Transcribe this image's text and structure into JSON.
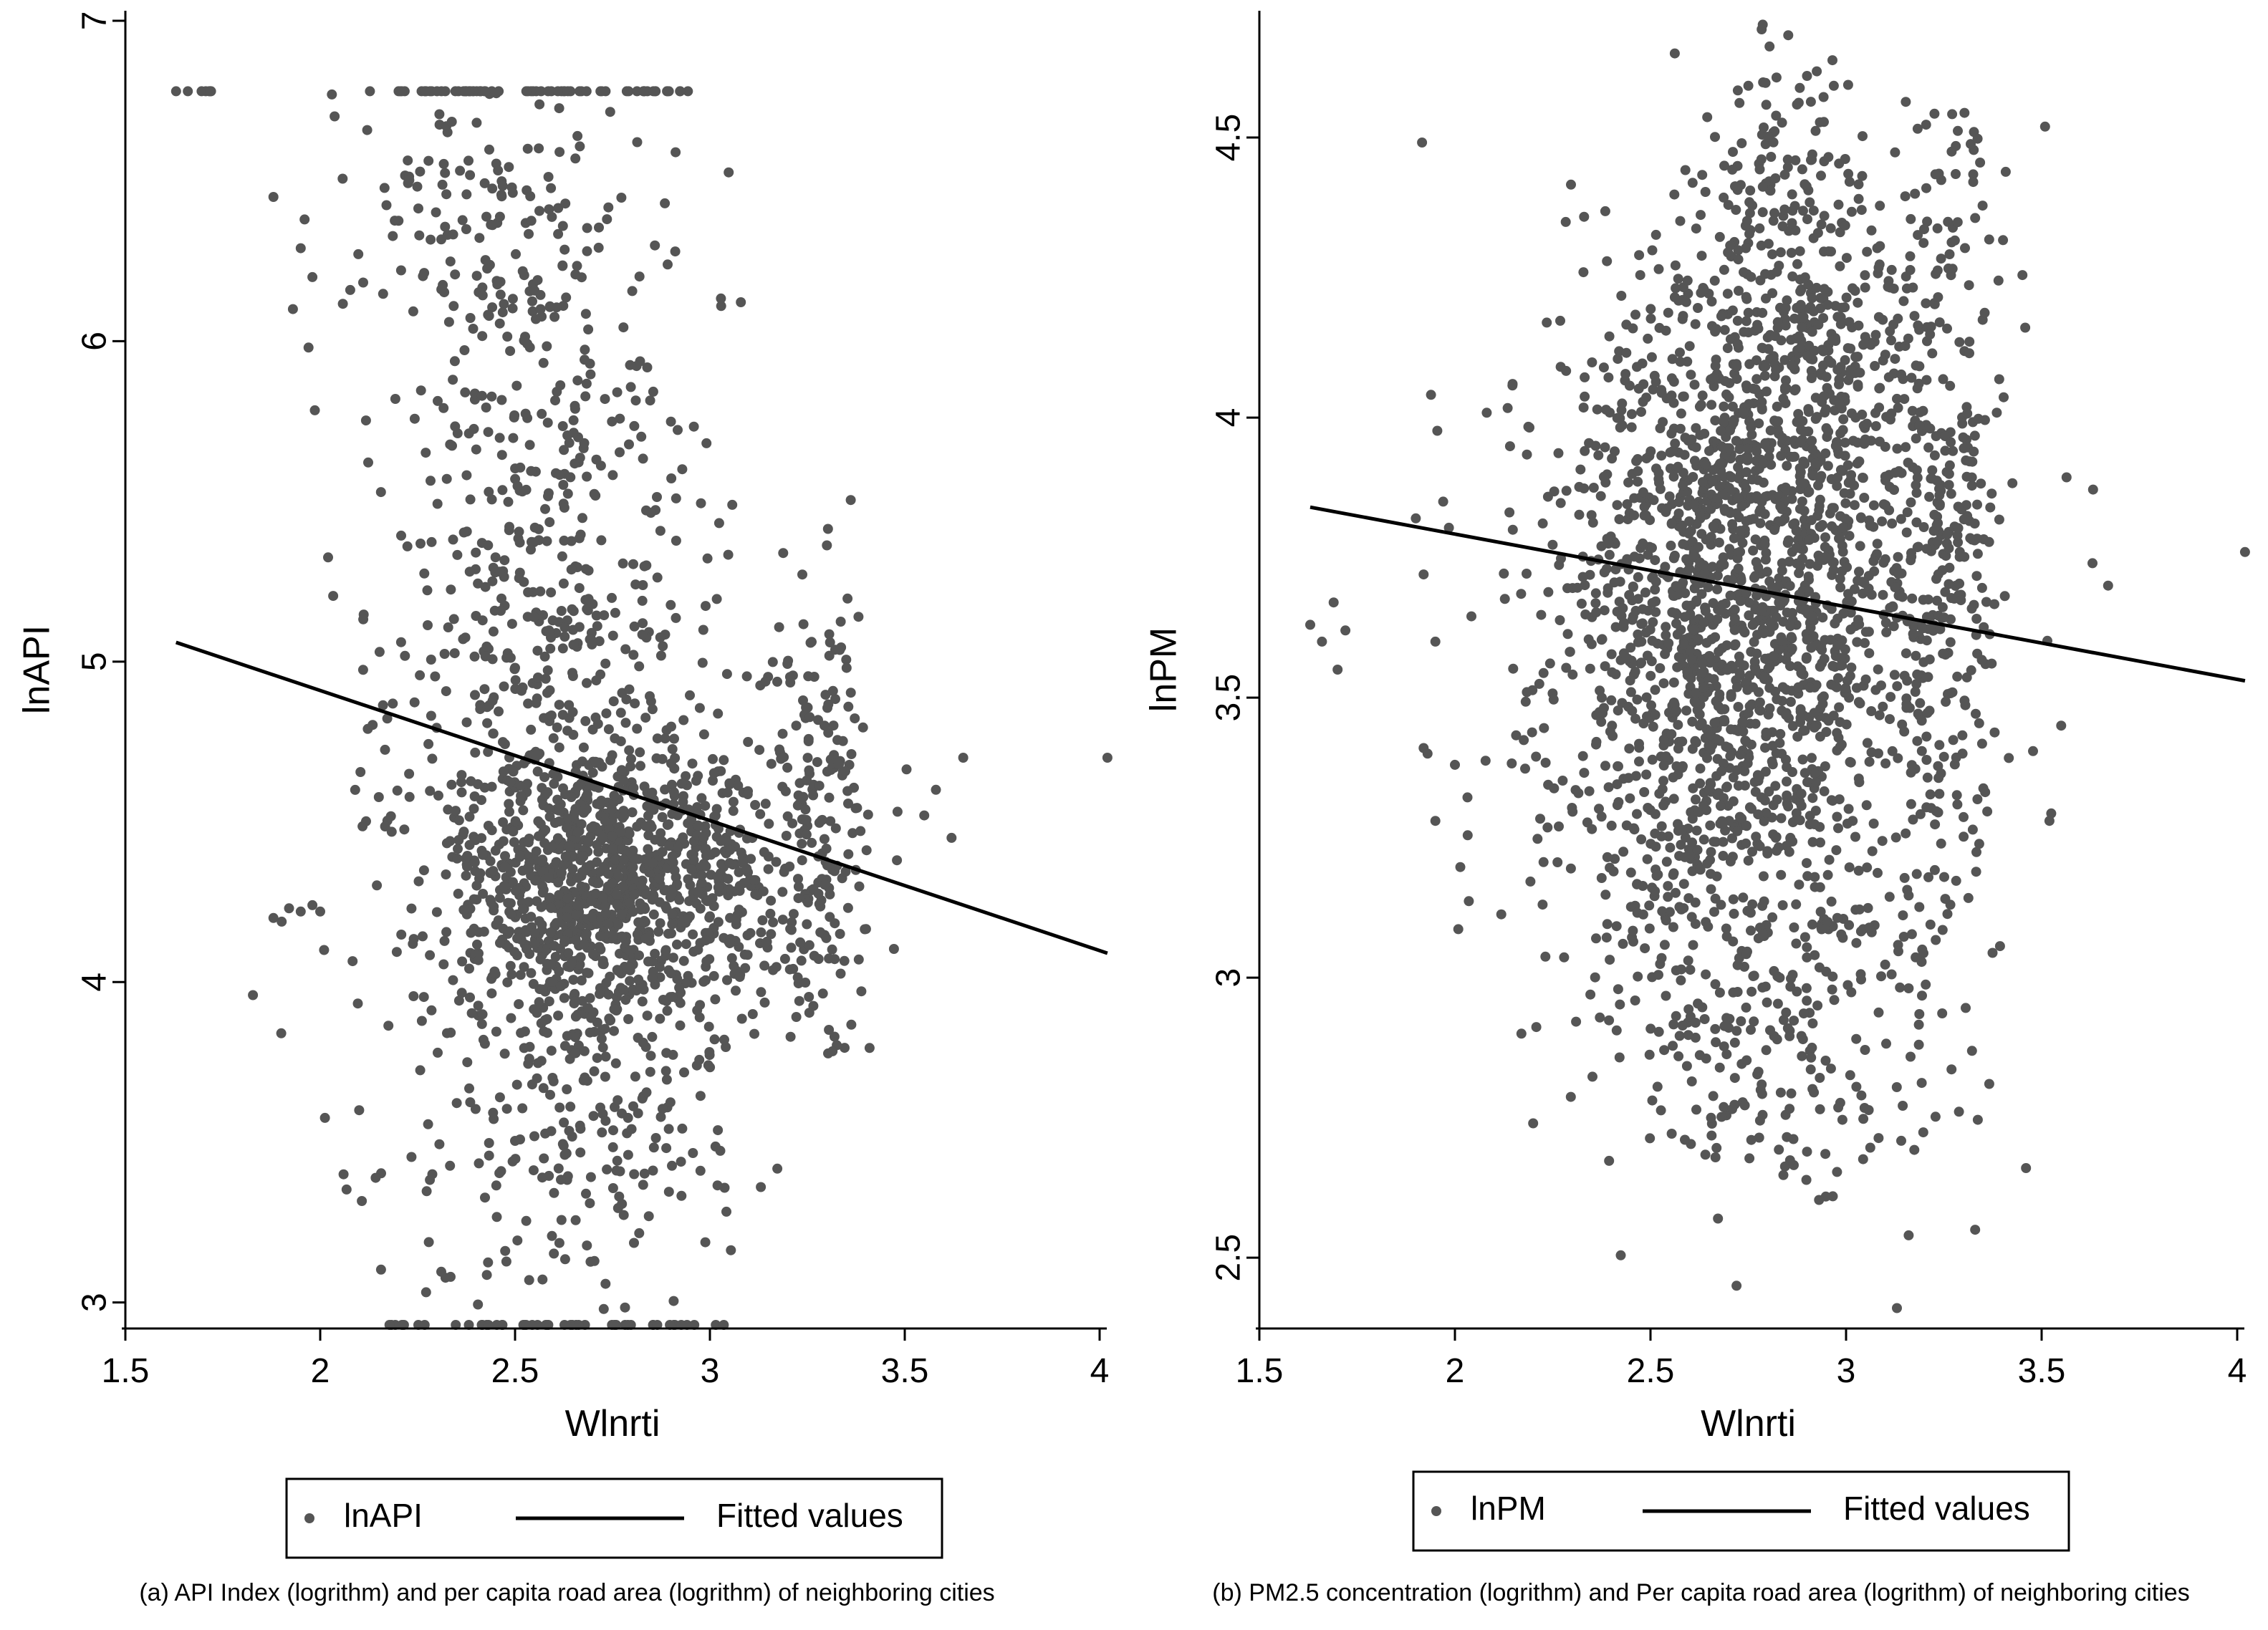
{
  "colors": {
    "point": "#555555",
    "fit_line": "#000000",
    "axis": "#000000"
  },
  "chart_data": [
    {
      "type": "scatter",
      "id": "a",
      "x_label": "Wlnrti",
      "y_label": "lnAPI",
      "xlim": [
        1.5,
        4.0
      ],
      "ylim": [
        2.93,
        7.02
      ],
      "x_ticks": [
        1.5,
        2,
        2.5,
        3,
        3.5,
        4
      ],
      "x_tick_labels": [
        "1.5",
        "2",
        "2.5",
        "3",
        "3.5",
        "4"
      ],
      "y_ticks": [
        3,
        4,
        5,
        6,
        7
      ],
      "y_tick_labels": [
        "3",
        "4",
        "5",
        "6",
        "7"
      ],
      "legend": {
        "placement": "bottom",
        "entries": [
          "lnAPI",
          "Fitted values"
        ]
      },
      "caption": "(a) API Index (logrithm) and per capita road area (logrithm) of neighboring cities",
      "fit_line": {
        "x": [
          1.63,
          4.02
        ],
        "y": [
          5.06,
          4.09
        ]
      },
      "point_clusters": [
        {
          "cx": 2.75,
          "cy": 4.3,
          "sx": 0.22,
          "sy": 0.22,
          "n": 1100
        },
        {
          "cx": 2.62,
          "cy": 4.85,
          "sx": 0.22,
          "sy": 0.45,
          "n": 380
        },
        {
          "cx": 2.55,
          "cy": 5.85,
          "sx": 0.2,
          "sy": 0.45,
          "n": 260
        },
        {
          "cx": 3.28,
          "cy": 4.5,
          "sx": 0.07,
          "sy": 0.35,
          "n": 200
        },
        {
          "cx": 2.65,
          "cy": 3.55,
          "sx": 0.22,
          "sy": 0.3,
          "n": 220
        },
        {
          "cx": 2.4,
          "cy": 6.45,
          "sx": 0.14,
          "sy": 0.22,
          "n": 80
        }
      ],
      "point_rows": [
        {
          "y": 6.78,
          "x_from": 2.2,
          "x_to": 2.95,
          "n": 60
        },
        {
          "y": 6.78,
          "x_from": 1.62,
          "x_to": 1.72,
          "n": 8
        },
        {
          "y": 2.93,
          "x_from": 2.12,
          "x_to": 3.05,
          "n": 45
        }
      ],
      "points_fixed": [
        [
          1.88,
          4.2
        ],
        [
          1.92,
          4.23
        ],
        [
          1.95,
          4.22
        ],
        [
          1.98,
          4.24
        ],
        [
          2.0,
          4.22
        ],
        [
          2.01,
          4.1
        ],
        [
          1.9,
          3.84
        ],
        [
          1.93,
          6.1
        ],
        [
          1.95,
          6.29
        ],
        [
          1.96,
          6.38
        ],
        [
          1.97,
          5.98
        ],
        [
          1.98,
          6.2
        ],
        [
          1.88,
          6.45
        ],
        [
          2.03,
          6.77
        ],
        [
          2.06,
          3.4
        ],
        [
          2.1,
          3.6
        ],
        [
          3.58,
          4.6
        ],
        [
          3.65,
          4.7
        ],
        [
          3.62,
          4.45
        ],
        [
          4.02,
          4.7
        ],
        [
          3.55,
          4.52
        ],
        [
          3.48,
          4.38
        ]
      ]
    },
    {
      "type": "scatter",
      "id": "b",
      "x_label": "Wlnrti",
      "y_label": "lnPM",
      "xlim": [
        1.5,
        4.0
      ],
      "ylim": [
        2.38,
        4.72
      ],
      "x_ticks": [
        1.5,
        2,
        2.5,
        3,
        3.5,
        4
      ],
      "x_tick_labels": [
        "1.5",
        "2",
        "2.5",
        "3",
        "3.5",
        "4"
      ],
      "y_ticks": [
        2.5,
        3,
        3.5,
        4,
        4.5
      ],
      "y_tick_labels": [
        "2.5",
        "3",
        "3.5",
        "4",
        "4.5"
      ],
      "legend": {
        "placement": "bottom",
        "entries": [
          "lnPM",
          "Fitted values"
        ]
      },
      "caption": "(b) PM2.5 concentration (logrithm) and Per capita road area (logrithm) of neighboring cities",
      "fit_line": {
        "x": [
          1.63,
          4.02
        ],
        "y": [
          3.84,
          3.53
        ]
      },
      "point_clusters": [
        {
          "cx": 2.75,
          "cy": 3.68,
          "sx": 0.25,
          "sy": 0.3,
          "n": 1500
        },
        {
          "cx": 2.9,
          "cy": 4.05,
          "sx": 0.22,
          "sy": 0.22,
          "n": 420
        },
        {
          "cx": 2.6,
          "cy": 3.35,
          "sx": 0.22,
          "sy": 0.25,
          "n": 320
        },
        {
          "cx": 3.25,
          "cy": 3.75,
          "sx": 0.07,
          "sy": 0.42,
          "n": 260
        },
        {
          "cx": 2.85,
          "cy": 4.4,
          "sx": 0.12,
          "sy": 0.15,
          "n": 100
        },
        {
          "cx": 2.85,
          "cy": 2.95,
          "sx": 0.2,
          "sy": 0.15,
          "n": 160
        },
        {
          "cx": 2.85,
          "cy": 2.72,
          "sx": 0.18,
          "sy": 0.08,
          "n": 35
        }
      ],
      "point_rows": [],
      "points_fixed": [
        [
          1.63,
          3.63
        ],
        [
          1.66,
          3.6
        ],
        [
          1.69,
          3.67
        ],
        [
          1.7,
          3.55
        ],
        [
          1.72,
          3.62
        ],
        [
          1.92,
          3.41
        ],
        [
          1.93,
          3.4
        ],
        [
          1.95,
          3.28
        ],
        [
          1.92,
          3.72
        ],
        [
          1.95,
          3.6
        ],
        [
          1.9,
          3.82
        ],
        [
          1.97,
          3.85
        ],
        [
          2.0,
          3.38
        ],
        [
          2.2,
          2.74
        ],
        [
          2.17,
          2.9
        ],
        [
          3.13,
          2.41
        ],
        [
          3.16,
          2.54
        ],
        [
          2.72,
          2.45
        ],
        [
          3.63,
          3.74
        ],
        [
          3.67,
          3.7
        ],
        [
          4.02,
          3.76
        ],
        [
          3.55,
          3.45
        ],
        [
          3.52,
          3.28
        ],
        [
          3.46,
          2.66
        ],
        [
          3.33,
          2.55
        ]
      ]
    }
  ]
}
